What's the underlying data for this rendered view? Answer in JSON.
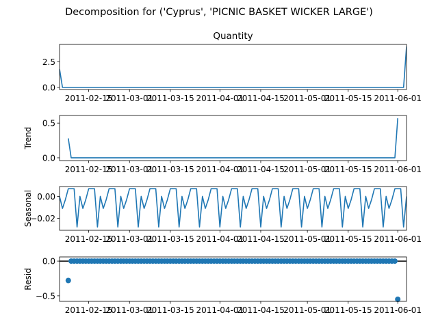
{
  "figure": {
    "suptitle": "Decomposition for ('Cyprus', 'PICNIC BASKET WICKER LARGE')"
  },
  "chart_data": [
    {
      "type": "line",
      "title": "Quantity",
      "ylabel": "",
      "x_start": "2011-02-05",
      "x_end": "2011-06-04",
      "ylim": [
        -0.2,
        4.2
      ],
      "yticks": [
        0.0,
        2.5
      ],
      "ytick_labels": [
        "0.0",
        "2.5"
      ],
      "xticks": [
        "2011-02-15",
        "2011-03-01",
        "2011-03-15",
        "2011-04-01",
        "2011-04-15",
        "2011-05-01",
        "2011-05-15",
        "2011-06-01"
      ],
      "xtick_labels": [
        "2011-02-15",
        "2011-03-01",
        "2011-03-15",
        "2011-04-01",
        "2011-04-15",
        "2011-05-01",
        "2011-05-15",
        "2011-06-01"
      ],
      "series": [
        {
          "x": [
            "2011-02-05",
            "2011-02-06",
            "2011-06-03",
            "2011-06-04"
          ],
          "y": [
            1.8,
            0.0,
            0.0,
            4.0
          ]
        }
      ]
    },
    {
      "type": "line",
      "title": "",
      "ylabel": "Trend",
      "x_start": "2011-02-05",
      "x_end": "2011-06-04",
      "ylim": [
        -0.04,
        0.61
      ],
      "yticks": [
        0.0,
        0.5
      ],
      "ytick_labels": [
        "0.0",
        "0.5"
      ],
      "xticks": [
        "2011-02-15",
        "2011-03-01",
        "2011-03-15",
        "2011-04-01",
        "2011-04-15",
        "2011-05-01",
        "2011-05-15",
        "2011-06-01"
      ],
      "xtick_labels": [
        "2011-02-15",
        "2011-03-01",
        "2011-03-15",
        "2011-04-01",
        "2011-04-15",
        "2011-05-01",
        "2011-05-15",
        "2011-06-01"
      ],
      "series": [
        {
          "x": [
            "2011-02-08",
            "2011-02-09",
            "2011-05-31",
            "2011-06-01"
          ],
          "y": [
            0.28,
            0.0,
            0.0,
            0.57
          ]
        }
      ]
    },
    {
      "type": "line",
      "title": "",
      "ylabel": "Seasonal",
      "x_start": "2011-02-05",
      "x_end": "2011-06-04",
      "ylim": [
        -0.031,
        0.009
      ],
      "yticks": [
        0.0,
        -0.02
      ],
      "ytick_labels": [
        "0.00",
        "−0.02"
      ],
      "xticks": [
        "2011-02-15",
        "2011-03-01",
        "2011-03-15",
        "2011-04-01",
        "2011-04-15",
        "2011-05-01",
        "2011-05-15",
        "2011-06-01"
      ],
      "xtick_labels": [
        "2011-02-15",
        "2011-03-01",
        "2011-03-15",
        "2011-04-01",
        "2011-04-15",
        "2011-05-01",
        "2011-05-15",
        "2011-06-01"
      ],
      "period": 7,
      "pattern": [
        0.0,
        -0.011,
        -0.003,
        0.007,
        0.007,
        0.007,
        -0.028
      ]
    },
    {
      "type": "scatter",
      "title": "",
      "ylabel": "Resid",
      "x_start": "2011-02-05",
      "x_end": "2011-06-04",
      "ylim": [
        -0.58,
        0.06
      ],
      "yticks": [
        0.0,
        -0.5
      ],
      "ytick_labels": [
        "0.0",
        "−0.5"
      ],
      "xticks": [
        "2011-02-15",
        "2011-03-01",
        "2011-03-15",
        "2011-04-01",
        "2011-04-15",
        "2011-05-01",
        "2011-05-15",
        "2011-06-01"
      ],
      "xtick_labels": [
        "2011-02-15",
        "2011-03-01",
        "2011-03-15",
        "2011-04-01",
        "2011-04-15",
        "2011-05-01",
        "2011-05-15",
        "2011-06-01"
      ],
      "zero_line": true,
      "series": [
        {
          "x_first": "2011-02-08",
          "x_last": "2011-06-01",
          "y_first": -0.28,
          "y_last": -0.55,
          "y_others": 0.0
        }
      ]
    }
  ],
  "colors": {
    "line": "#1f77b4",
    "axes": "#000000",
    "background": "#ffffff"
  }
}
